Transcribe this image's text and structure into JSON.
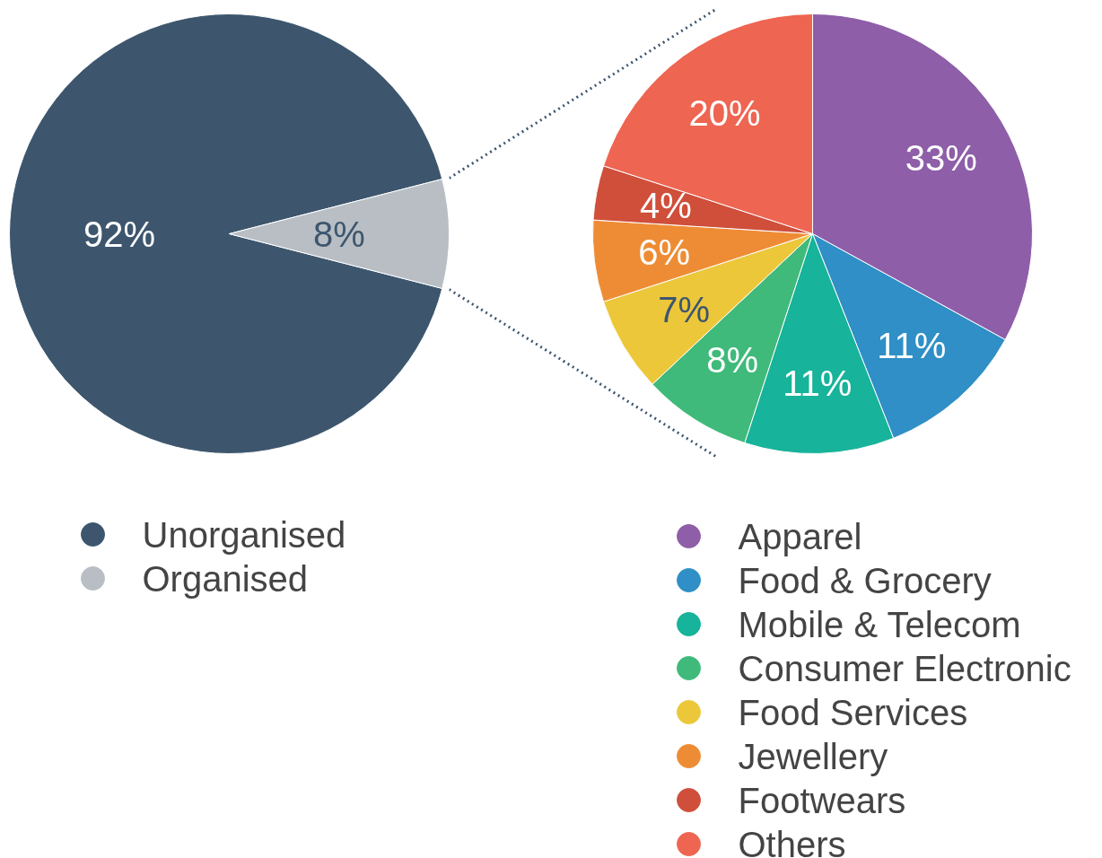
{
  "chart_data": [
    {
      "type": "pie",
      "categories": [
        "Unorganised",
        "Organised"
      ],
      "values": [
        92,
        8
      ],
      "value_labels": [
        "92%",
        "8%"
      ],
      "colors": [
        "#3d566e",
        "#b8bec4"
      ],
      "legend": "bottom"
    },
    {
      "type": "pie",
      "categories": [
        "Apparel",
        "Food & Grocery",
        "Mobile & Telecom",
        "Consumer Electronic",
        "Food Services",
        "Jewellery",
        "Footwears",
        "Others"
      ],
      "values": [
        33,
        11,
        11,
        8,
        7,
        6,
        4,
        20
      ],
      "value_labels": [
        "33%",
        "11%",
        "11%",
        "8%",
        "7%",
        "6%",
        "4%",
        "20%"
      ],
      "colors": [
        "#8e5ea9",
        "#2f8fc6",
        "#17b39a",
        "#3fba7a",
        "#ecc73a",
        "#ee8c35",
        "#cf4f3b",
        "#ee6551"
      ],
      "legend": "bottom"
    }
  ]
}
